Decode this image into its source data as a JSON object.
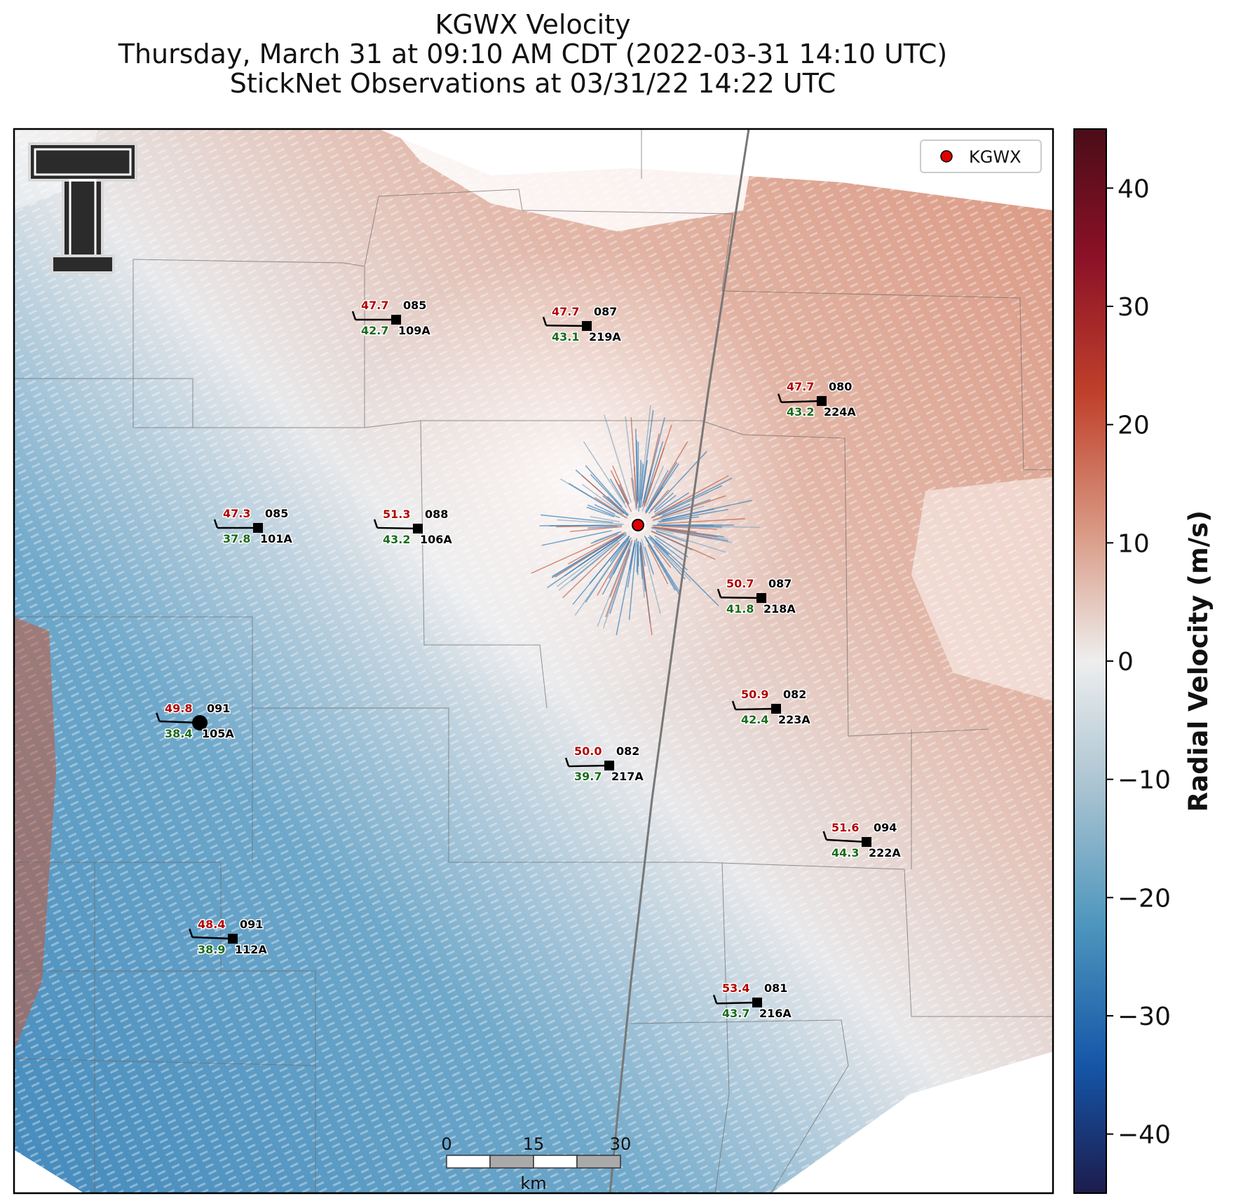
{
  "title": {
    "line1": "KGWX Velocity",
    "line2": "Thursday, March 31 at 09:10 AM CDT (2022-03-31 14:10 UTC)",
    "line3": "StickNet Observations at 03/31/22 14:22 UTC"
  },
  "legend": {
    "label": "KGWX",
    "marker_color": "#e00000"
  },
  "colorbar": {
    "label": "Radial Velocity (m/s)",
    "range": [
      -45,
      45
    ],
    "ticks": [
      40,
      30,
      20,
      10,
      0,
      -10,
      -20,
      -30,
      -40
    ],
    "tick_labels": [
      "40",
      "30",
      "20",
      "10",
      "0",
      "−10",
      "−20",
      "−30",
      "−40"
    ],
    "colors": [
      "#4a0d18",
      "#8c1127",
      "#c0412b",
      "#d99a85",
      "#eeeeee",
      "#a9c3d1",
      "#4c95bd",
      "#1556a8",
      "#1d1c4d"
    ]
  },
  "scale_bar": {
    "labels": [
      "0",
      "15",
      "30"
    ],
    "unit": "km"
  },
  "radar": {
    "name": "KGWX"
  },
  "logo": {
    "name": "texas-tech-double-t-logo"
  },
  "stations": [
    {
      "id": "109A",
      "temp": "47.7",
      "dew": "42.7",
      "dir": "085"
    },
    {
      "id": "219A",
      "temp": "47.7",
      "dew": "43.1",
      "dir": "087"
    },
    {
      "id": "224A",
      "temp": "47.7",
      "dew": "43.2",
      "dir": "080"
    },
    {
      "id": "101A",
      "temp": "47.3",
      "dew": "37.8",
      "dir": "085"
    },
    {
      "id": "106A",
      "temp": "51.3",
      "dew": "43.2",
      "dir": "088"
    },
    {
      "id": "218A",
      "temp": "50.7",
      "dew": "41.8",
      "dir": "087"
    },
    {
      "id": "105A",
      "temp": "49.8",
      "dew": "38.4",
      "dir": "091"
    },
    {
      "id": "223A",
      "temp": "50.9",
      "dew": "42.4",
      "dir": "082"
    },
    {
      "id": "217A",
      "temp": "50.0",
      "dew": "39.7",
      "dir": "082"
    },
    {
      "id": "222A",
      "temp": "51.6",
      "dew": "44.3",
      "dir": "094"
    },
    {
      "id": "112A",
      "temp": "48.4",
      "dew": "38.9",
      "dir": "091"
    },
    {
      "id": "216A",
      "temp": "53.4",
      "dew": "43.7",
      "dir": "081"
    }
  ]
}
